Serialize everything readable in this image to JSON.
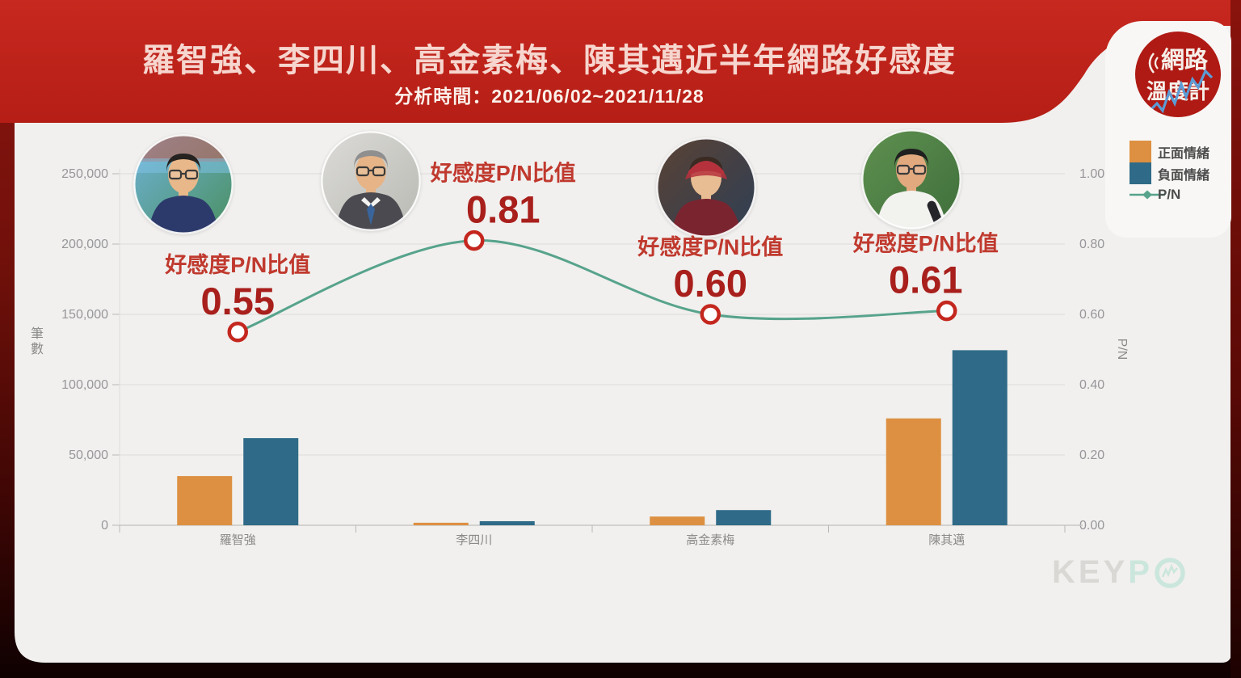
{
  "header": {
    "title": "羅智強、李四川、高金素梅、陳其邁近半年網路好感度",
    "subtitle": "分析時間：2021/06/02~2021/11/28"
  },
  "logo": {
    "line1": "網路",
    "line2": "溫度計"
  },
  "legend": {
    "items": [
      {
        "label": "正面情緒",
        "color": "#DD9041"
      },
      {
        "label": "負面情緒",
        "color": "#2F6B88"
      },
      {
        "label": "P/N",
        "color": "#57A38C"
      }
    ]
  },
  "watermark": {
    "text1": "KEY",
    "text2": "P",
    "icon": "circle-trendline"
  },
  "people": [
    {
      "name": "羅智強",
      "photo": {
        "desc": "man-with-glasses-dark-jacket-colorful-street-background",
        "bg1": "#6fb3d9",
        "bg2": "#4a8f5f",
        "skin": "#e8b88a",
        "hair": "#26221f",
        "shirt": "#2c3a6b",
        "glasses": true,
        "cap": false,
        "tie": false,
        "mic": false
      }
    },
    {
      "name": "李四川",
      "photo": {
        "desc": "elderly-man-glasses-suit-tie-light-background",
        "bg1": "#dcdbd7",
        "bg2": "#b9b9b4",
        "skin": "#e6b487",
        "hair": "#8f8f8f",
        "shirt": "#4a4a50",
        "glasses": true,
        "cap": false,
        "tie": true,
        "mic": false
      }
    },
    {
      "name": "高金素梅",
      "photo": {
        "desc": "woman-red-cap-maroon-shirt-raised-fist",
        "bg1": "#5a4234",
        "bg2": "#2e3f55",
        "skin": "#e9bd93",
        "hair": "#3a2a22",
        "shirt": "#7a2430",
        "glasses": false,
        "cap": true,
        "cap_color": "#b5323c",
        "tie": false,
        "mic": false
      }
    },
    {
      "name": "陳其邁",
      "photo": {
        "desc": "man-glasses-white-shirt-microphone-green-foliage",
        "bg1": "#5f9150",
        "bg2": "#3f6e3b",
        "skin": "#e2a97e",
        "hair": "#1f1f1f",
        "shirt": "#f2f2ef",
        "glasses": true,
        "cap": false,
        "tie": false,
        "mic": true
      }
    }
  ],
  "chart_data": {
    "type": "bar+line",
    "categories": [
      "羅智強",
      "李四川",
      "高金素梅",
      "陳其邁"
    ],
    "series": [
      {
        "name": "正面情緒",
        "type": "bar",
        "axis": "left",
        "color": "#DD9041",
        "values": [
          35000,
          1800,
          6200,
          76000
        ]
      },
      {
        "name": "負面情緒",
        "type": "bar",
        "axis": "left",
        "color": "#2F6B88",
        "values": [
          62000,
          2900,
          10800,
          124500
        ]
      },
      {
        "name": "P/N",
        "type": "line",
        "axis": "right",
        "color": "#57A38C",
        "values": [
          0.55,
          0.81,
          0.6,
          0.61
        ]
      }
    ],
    "annotations": [
      {
        "category": "羅智強",
        "label": "好感度P/N比值",
        "value": "0.55"
      },
      {
        "category": "李四川",
        "label": "好感度P/N比值",
        "value": "0.81"
      },
      {
        "category": "高金素梅",
        "label": "好感度P/N比值",
        "value": "0.60"
      },
      {
        "category": "陳其邁",
        "label": "好感度P/N比值",
        "value": "0.61"
      }
    ],
    "left_axis": {
      "label": "筆數",
      "min": 0,
      "max": 250000,
      "tick_labels": [
        "0",
        "50,000",
        "100,000",
        "150,000",
        "200,000",
        "250,000"
      ]
    },
    "right_axis": {
      "label": "P/N",
      "min": 0,
      "max": 1.0,
      "tick_labels": [
        "0.00",
        "0.20",
        "0.40",
        "0.60",
        "0.80",
        "1.00"
      ]
    },
    "grid": true,
    "legend_position": "top-right",
    "marker_style": {
      "fill": "#ffffff",
      "ring": "#c4271e"
    },
    "annotation_colors": {
      "label": "#c0392e",
      "value": "#a81f1c"
    }
  }
}
